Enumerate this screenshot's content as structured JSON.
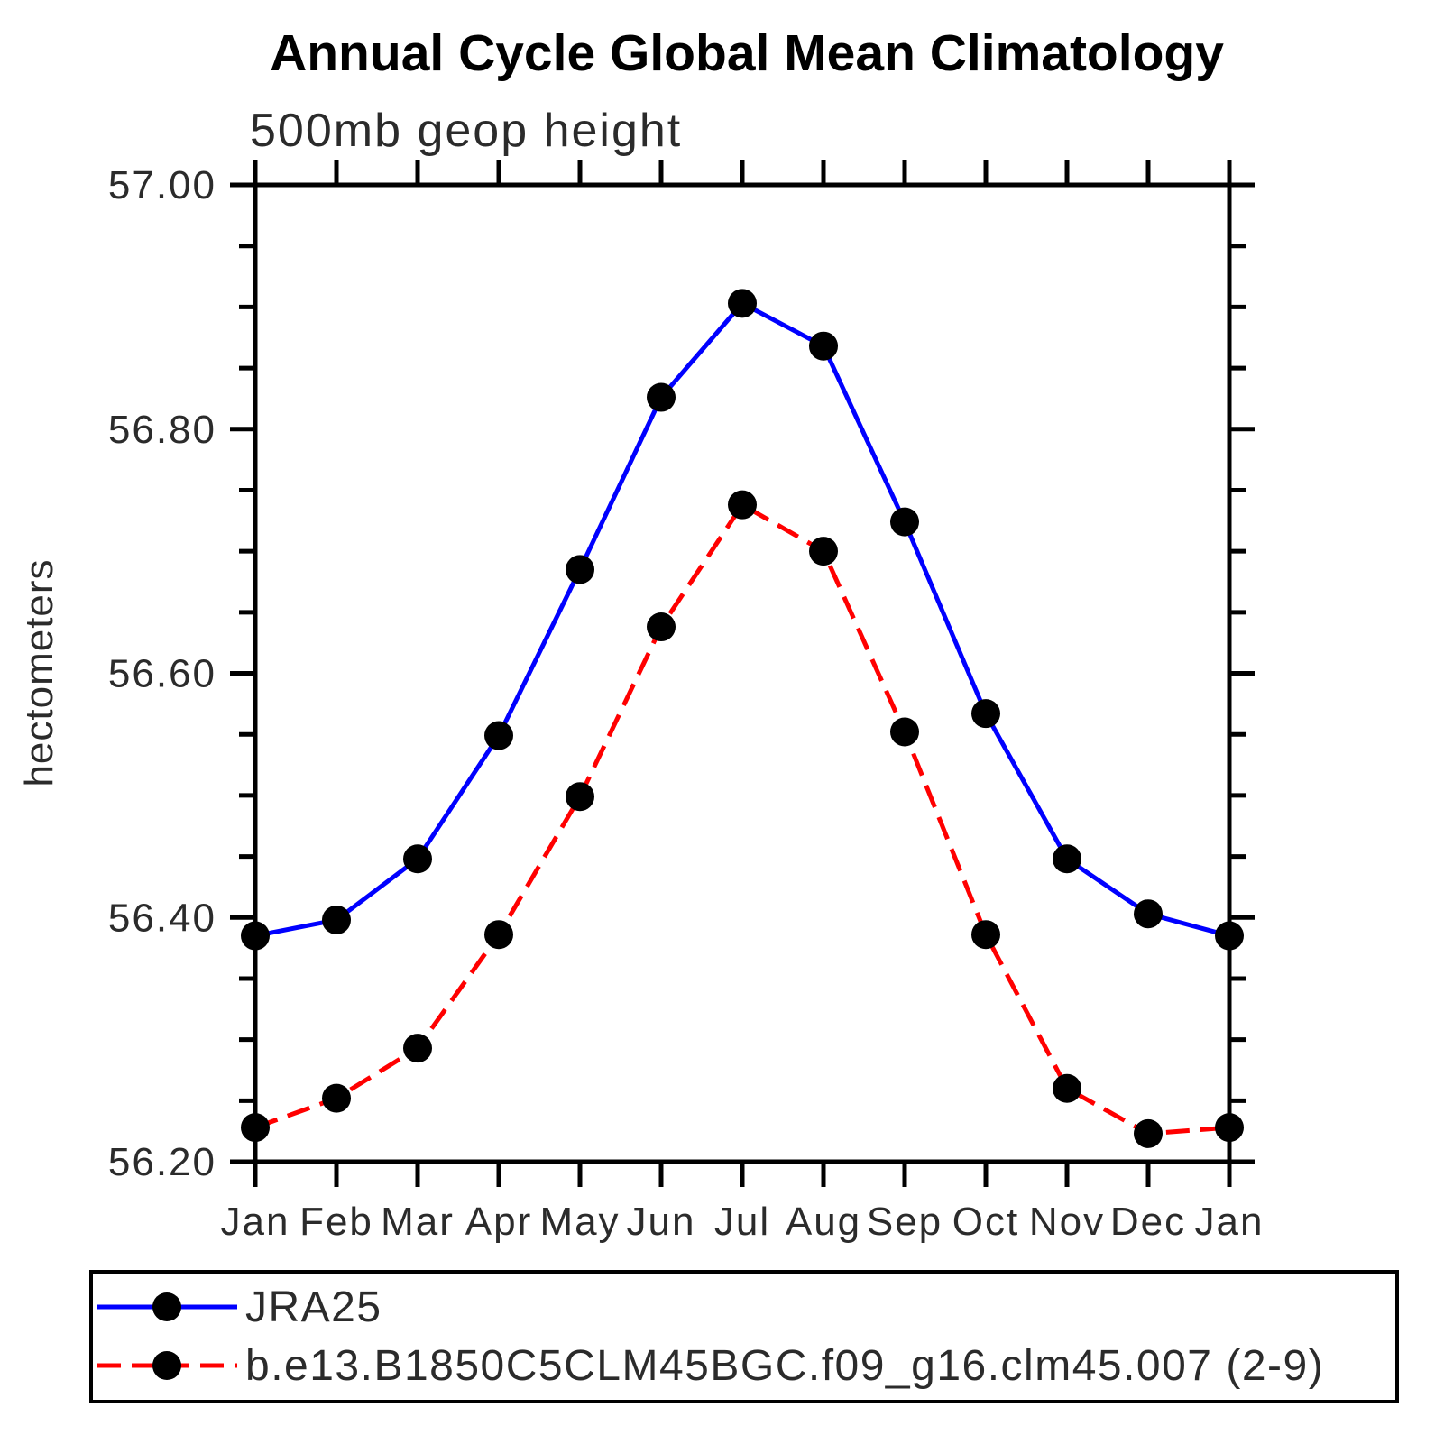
{
  "chart_data": {
    "type": "line",
    "title": "Annual Cycle Global Mean Climatology",
    "subtitle": "500mb geop height",
    "xlabel": "",
    "ylabel": "hectometers",
    "categories": [
      "Jan",
      "Feb",
      "Mar",
      "Apr",
      "May",
      "Jun",
      "Jul",
      "Aug",
      "Sep",
      "Oct",
      "Nov",
      "Dec",
      "Jan"
    ],
    "ylim": [
      56.2,
      57.0
    ],
    "yticks": [
      {
        "value": 56.2,
        "label": "56.20"
      },
      {
        "value": 56.4,
        "label": "56.40"
      },
      {
        "value": 56.6,
        "label": "56.60"
      },
      {
        "value": 56.8,
        "label": "56.80"
      },
      {
        "value": 57.0,
        "label": "57.00"
      }
    ],
    "ytick_minor_step": 0.05,
    "grid": false,
    "frame": "box-with-outward-ticks",
    "legend_position": "bottom-left-box",
    "axis_color": "#000000",
    "marker_shape": "filled-circle",
    "series": [
      {
        "name": "JRA25",
        "color": "#0000ff",
        "line_style": "solid",
        "marker_color": "#000000",
        "values": [
          56.385,
          56.398,
          56.448,
          56.549,
          56.685,
          56.826,
          56.903,
          56.868,
          56.724,
          56.567,
          56.448,
          56.403,
          56.385
        ]
      },
      {
        "name": "b.e13.B1850C5CLM45BGC.f09_g16.clm45.007 (2-9)",
        "color": "#ff0000",
        "line_style": "dashed",
        "marker_color": "#000000",
        "values": [
          56.228,
          56.252,
          56.293,
          56.386,
          56.499,
          56.638,
          56.738,
          56.7,
          56.552,
          56.386,
          56.26,
          56.223,
          56.228
        ]
      }
    ]
  }
}
